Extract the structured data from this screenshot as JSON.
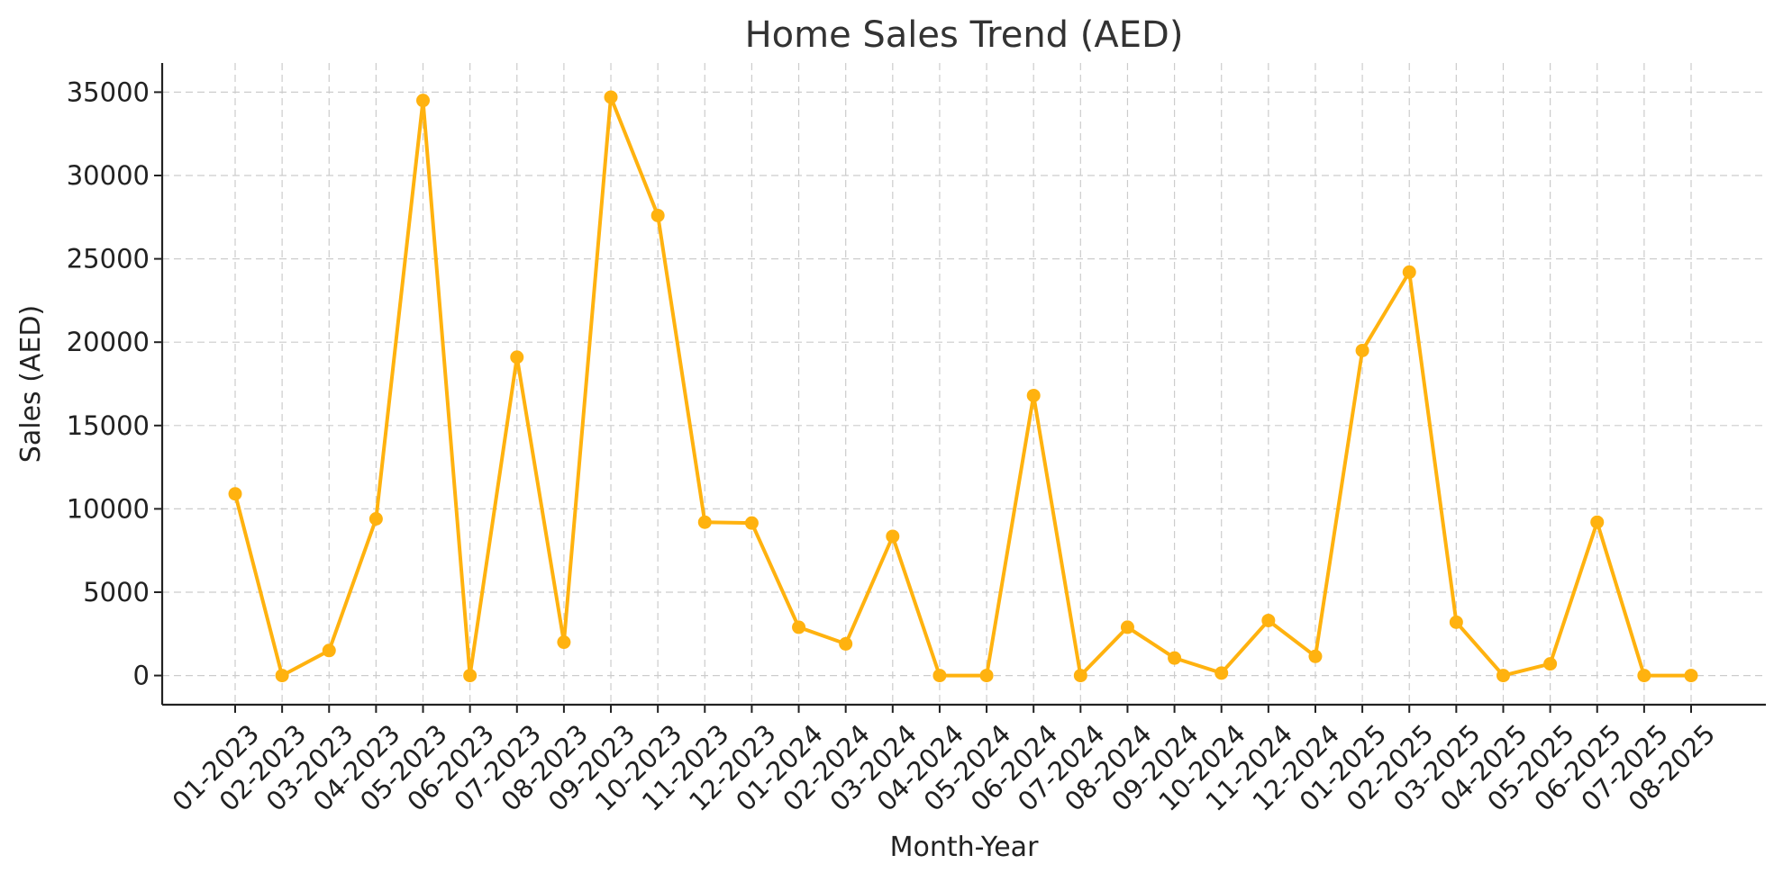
{
  "chart_data": {
    "type": "line",
    "title": "Home Sales Trend (AED)",
    "xlabel": "Month-Year",
    "ylabel": "Sales (AED)",
    "categories": [
      "01-2023",
      "02-2023",
      "03-2023",
      "04-2023",
      "05-2023",
      "06-2023",
      "07-2023",
      "08-2023",
      "09-2023",
      "10-2023",
      "11-2023",
      "12-2023",
      "01-2024",
      "02-2024",
      "03-2024",
      "04-2024",
      "05-2024",
      "06-2024",
      "07-2024",
      "08-2024",
      "09-2024",
      "10-2024",
      "11-2024",
      "12-2024",
      "01-2025",
      "02-2025",
      "03-2025",
      "04-2025",
      "05-2025",
      "06-2025",
      "07-2025",
      "08-2025"
    ],
    "series": [
      {
        "values": [
          10900,
          0,
          1500,
          9400,
          34500,
          0,
          19100,
          2000,
          34700,
          27600,
          9200,
          9150,
          2900,
          1900,
          8350,
          0,
          0,
          16800,
          0,
          2900,
          1050,
          150,
          3300,
          1150,
          19500,
          24200,
          3200,
          0,
          700,
          9200,
          0,
          0
        ],
        "color": "#FFB20F"
      }
    ],
    "yticks": [
      0,
      5000,
      10000,
      15000,
      20000,
      25000,
      30000,
      35000
    ],
    "ylim": [
      -1750,
      36750
    ],
    "grid": true,
    "legend": "none"
  }
}
